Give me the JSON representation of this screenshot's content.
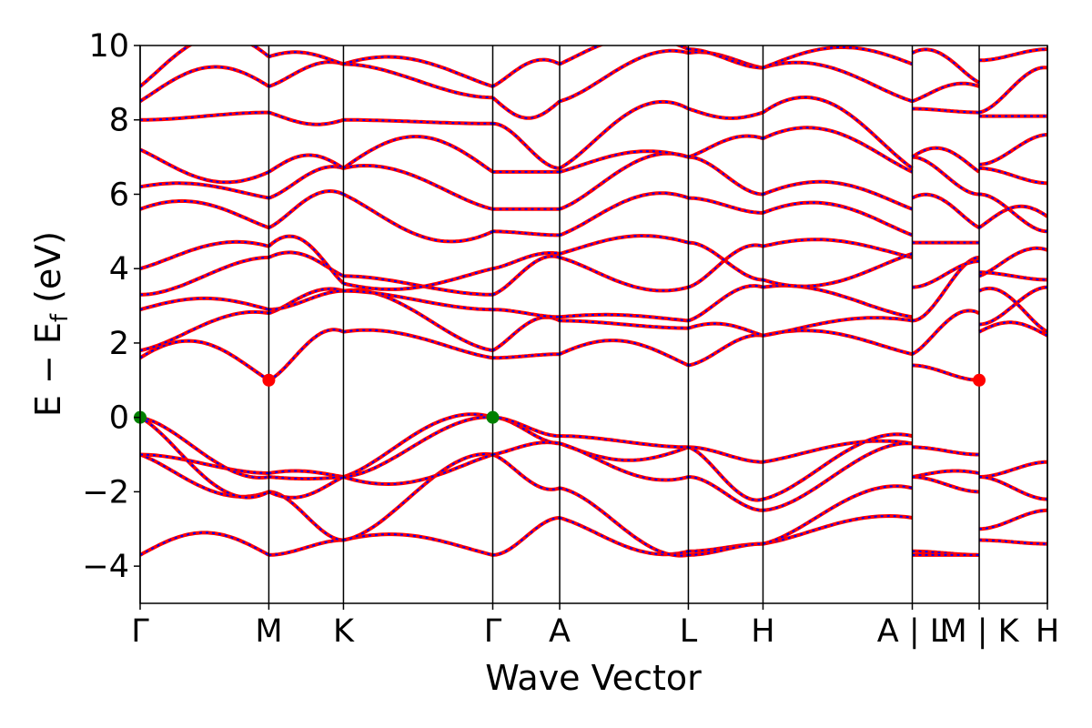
{
  "chart_data": {
    "type": "line",
    "xlabel": "Wave Vector",
    "ylabel": "E − E",
    "ylabel_sub": "f",
    "ylabel_unit": " (eV)",
    "ylim": [
      -5,
      10
    ],
    "yticks": [
      -4,
      -2,
      0,
      2,
      4,
      6,
      8,
      10
    ],
    "ytick_labels": [
      "−4",
      "−2",
      "0",
      "2",
      "4",
      "6",
      "8",
      "10"
    ],
    "xlim": [
      0,
      7.05
    ],
    "high_symmetry_points": [
      {
        "x": 0.0,
        "label": "Γ"
      },
      {
        "x": 1.0,
        "label": "M"
      },
      {
        "x": 1.58,
        "label": "K"
      },
      {
        "x": 2.74,
        "label": "Γ"
      },
      {
        "x": 3.26,
        "label": "A"
      },
      {
        "x": 4.26,
        "label": "L"
      },
      {
        "x": 4.84,
        "label": "H"
      },
      {
        "x": 6.0,
        "label": "A | L"
      },
      {
        "x": 6.52,
        "label": "M | K"
      },
      {
        "x": 7.05,
        "label": "H"
      }
    ],
    "line_colors": {
      "band_a": "#ff0000",
      "band_b": "#0000ff"
    },
    "marker_colors": {
      "vbm": "#008000",
      "cbm": "#ff0000"
    },
    "vbm_points": [
      {
        "x": 0.0,
        "y": 0.0
      },
      {
        "x": 2.74,
        "y": 0.0
      }
    ],
    "cbm_points": [
      {
        "x": 1.0,
        "y": 1.0
      },
      {
        "x": 6.52,
        "y": 1.0
      }
    ],
    "segments": [
      {
        "x0": 0.0,
        "x1": 1.0,
        "bands": [
          {
            "y0": -3.7,
            "y1": -3.7,
            "bump": 0.6
          },
          {
            "y0": -1.0,
            "y1": -2.0,
            "bump": -0.4
          },
          {
            "y0": -1.0,
            "y1": -1.5,
            "bump": 0.0
          },
          {
            "y0": 0.0,
            "y1": -1.6,
            "bump": -0.2
          },
          {
            "y0": 0.0,
            "y1": -2.0,
            "bump": -0.6
          },
          {
            "y0": 1.6,
            "y1": 1.0,
            "bump": 0.7
          },
          {
            "y0": 1.8,
            "y1": 2.8,
            "bump": 0.2
          },
          {
            "y0": 2.9,
            "y1": 2.9,
            "bump": 0.3
          },
          {
            "y0": 3.3,
            "y1": 4.3,
            "bump": 0.0
          },
          {
            "y0": 4.0,
            "y1": 4.6,
            "bump": 0.3
          },
          {
            "y0": 5.6,
            "y1": 5.1,
            "bump": 0.4
          },
          {
            "y0": 6.2,
            "y1": 5.9,
            "bump": 0.2
          },
          {
            "y0": 7.2,
            "y1": 6.6,
            "bump": -0.5
          },
          {
            "y0": 8.0,
            "y1": 8.2,
            "bump": 0.0
          },
          {
            "y0": 8.5,
            "y1": 8.9,
            "bump": 0.7
          },
          {
            "y0": 8.9,
            "y1": 9.7,
            "bump": 0.9
          }
        ]
      },
      {
        "x0": 1.0,
        "x1": 1.58,
        "bands": [
          {
            "y0": -3.7,
            "y1": -3.3,
            "bump": 0.0
          },
          {
            "y0": -2.0,
            "y1": -3.3,
            "bump": 0.0
          },
          {
            "y0": -1.5,
            "y1": -1.6,
            "bump": 0.1
          },
          {
            "y0": -1.6,
            "y1": -1.6,
            "bump": -0.05
          },
          {
            "y0": -2.0,
            "y1": -1.6,
            "bump": -0.3
          },
          {
            "y0": 1.0,
            "y1": 2.3,
            "bump": 0.3
          },
          {
            "y0": 2.8,
            "y1": 3.4,
            "bump": 0.2
          },
          {
            "y0": 2.9,
            "y1": 3.4,
            "bump": 0.0
          },
          {
            "y0": 4.3,
            "y1": 3.8,
            "bump": 0.3
          },
          {
            "y0": 4.6,
            "y1": 3.6,
            "bump": 0.6
          },
          {
            "y0": 5.1,
            "y1": 6.0,
            "bump": 0.3
          },
          {
            "y0": 5.9,
            "y1": 6.7,
            "bump": 0.2
          },
          {
            "y0": 6.6,
            "y1": 6.7,
            "bump": 0.4
          },
          {
            "y0": 8.2,
            "y1": 8.0,
            "bump": -0.2
          },
          {
            "y0": 8.9,
            "y1": 9.5,
            "bump": 0.2
          },
          {
            "y0": 9.7,
            "y1": 9.5,
            "bump": 0.2
          }
        ]
      },
      {
        "x0": 1.58,
        "x1": 2.74,
        "bands": [
          {
            "y0": -3.3,
            "y1": -3.7,
            "bump": 0.3
          },
          {
            "y0": -3.3,
            "y1": -1.0,
            "bump": 0.2
          },
          {
            "y0": -1.6,
            "y1": 0.0,
            "bump": 0.4
          },
          {
            "y0": -1.6,
            "y1": 0.0,
            "bump": 0.1
          },
          {
            "y0": -1.6,
            "y1": -1.0,
            "bump": -0.4
          },
          {
            "y0": 2.3,
            "y1": 1.6,
            "bump": 0.2
          },
          {
            "y0": 3.4,
            "y1": 1.8,
            "bump": 0.2
          },
          {
            "y0": 3.4,
            "y1": 2.9,
            "bump": 0.0
          },
          {
            "y0": 3.8,
            "y1": 3.3,
            "bump": 0.0
          },
          {
            "y0": 3.6,
            "y1": 4.0,
            "bump": -0.3
          },
          {
            "y0": 6.0,
            "y1": 5.0,
            "bump": -0.6
          },
          {
            "y0": 6.7,
            "y1": 5.6,
            "bump": 0.3
          },
          {
            "y0": 6.7,
            "y1": 6.6,
            "bump": 0.9
          },
          {
            "y0": 8.0,
            "y1": 7.9,
            "bump": 0.0
          },
          {
            "y0": 9.5,
            "y1": 8.6,
            "bump": 0.0
          },
          {
            "y0": 9.5,
            "y1": 8.9,
            "bump": 0.4
          }
        ]
      },
      {
        "x0": 2.74,
        "x1": 3.26,
        "bands": [
          {
            "y0": -3.7,
            "y1": -2.7,
            "bump": 0.0
          },
          {
            "y0": -1.0,
            "y1": -1.9,
            "bump": -0.2
          },
          {
            "y0": 0.0,
            "y1": -0.7,
            "bump": 0.0
          },
          {
            "y0": 0.0,
            "y1": -0.5,
            "bump": 0.0
          },
          {
            "y0": -1.0,
            "y1": -0.7,
            "bump": 0.1
          },
          {
            "y0": 1.6,
            "y1": 1.7,
            "bump": 0.0
          },
          {
            "y0": 1.8,
            "y1": 2.6,
            "bump": 0.3
          },
          {
            "y0": 2.9,
            "y1": 2.7,
            "bump": 0.0
          },
          {
            "y0": 3.3,
            "y1": 4.3,
            "bump": 0.2
          },
          {
            "y0": 4.0,
            "y1": 4.4,
            "bump": 0.1
          },
          {
            "y0": 5.0,
            "y1": 4.9,
            "bump": 0.0
          },
          {
            "y0": 5.6,
            "y1": 5.6,
            "bump": 0.0
          },
          {
            "y0": 6.6,
            "y1": 6.6,
            "bump": 0.0
          },
          {
            "y0": 7.9,
            "y1": 6.7,
            "bump": 0.0
          },
          {
            "y0": 8.6,
            "y1": 8.5,
            "bump": -0.5
          },
          {
            "y0": 8.9,
            "y1": 9.5,
            "bump": 0.3
          }
        ]
      },
      {
        "x0": 3.26,
        "x1": 4.26,
        "bands": [
          {
            "y0": -2.7,
            "y1": -3.6,
            "bump": -0.3
          },
          {
            "y0": -1.9,
            "y1": -3.7,
            "bump": -0.2
          },
          {
            "y0": -0.7,
            "y1": -0.8,
            "bump": -0.4
          },
          {
            "y0": -0.5,
            "y1": -0.8,
            "bump": 0.0
          },
          {
            "y0": -0.7,
            "y1": -1.6,
            "bump": -0.3
          },
          {
            "y0": 1.7,
            "y1": 1.4,
            "bump": 0.5
          },
          {
            "y0": 2.6,
            "y1": 2.4,
            "bump": 0.0
          },
          {
            "y0": 2.7,
            "y1": 2.6,
            "bump": 0.1
          },
          {
            "y0": 4.3,
            "y1": 3.5,
            "bump": -0.3
          },
          {
            "y0": 4.4,
            "y1": 4.7,
            "bump": 0.3
          },
          {
            "y0": 4.9,
            "y1": 5.9,
            "bump": 0.4
          },
          {
            "y0": 5.6,
            "y1": 7.0,
            "bump": 0.4
          },
          {
            "y0": 6.6,
            "y1": 7.0,
            "bump": 0.3
          },
          {
            "y0": 6.7,
            "y1": 8.3,
            "bump": 0.6
          },
          {
            "y0": 8.5,
            "y1": 9.8,
            "bump": 0.3
          },
          {
            "y0": 9.5,
            "y1": 9.9,
            "bump": 0.5
          }
        ]
      },
      {
        "x0": 4.26,
        "x1": 4.84,
        "bands": [
          {
            "y0": -3.6,
            "y1": -3.4,
            "bump": 0.0
          },
          {
            "y0": -3.7,
            "y1": -3.4,
            "bump": 0.0
          },
          {
            "y0": -0.8,
            "y1": -1.2,
            "bump": 0.0
          },
          {
            "y0": -0.8,
            "y1": -2.2,
            "bump": -0.2
          },
          {
            "y0": -1.6,
            "y1": -2.5,
            "bump": 0.0
          },
          {
            "y0": 1.4,
            "y1": 2.2,
            "bump": 0.1
          },
          {
            "y0": 2.4,
            "y1": 2.2,
            "bump": 0.2
          },
          {
            "y0": 2.6,
            "y1": 3.5,
            "bump": 0.2
          },
          {
            "y0": 3.5,
            "y1": 4.6,
            "bump": 0.2
          },
          {
            "y0": 4.7,
            "y1": 3.7,
            "bump": 0.0
          },
          {
            "y0": 5.9,
            "y1": 5.5,
            "bump": 0.0
          },
          {
            "y0": 7.0,
            "y1": 6.0,
            "bump": 0.0
          },
          {
            "y0": 7.0,
            "y1": 7.5,
            "bump": 0.2
          },
          {
            "y0": 8.3,
            "y1": 8.2,
            "bump": -0.2
          },
          {
            "y0": 9.8,
            "y1": 9.4,
            "bump": 0.1
          },
          {
            "y0": 9.9,
            "y1": 9.4,
            "bump": 0.0
          }
        ]
      },
      {
        "x0": 4.84,
        "x1": 6.0,
        "bands": [
          {
            "y0": -3.4,
            "y1": -2.7,
            "bump": 0.2
          },
          {
            "y0": -3.4,
            "y1": -1.9,
            "bump": 0.3
          },
          {
            "y0": -1.2,
            "y1": -0.7,
            "bump": 0.2
          },
          {
            "y0": -2.2,
            "y1": -0.5,
            "bump": 0.3
          },
          {
            "y0": -2.5,
            "y1": -0.7,
            "bump": 0.1
          },
          {
            "y0": 2.2,
            "y1": 1.7,
            "bump": 0.3
          },
          {
            "y0": 2.2,
            "y1": 2.6,
            "bump": 0.2
          },
          {
            "y0": 3.5,
            "y1": 2.7,
            "bump": 0.2
          },
          {
            "y0": 4.6,
            "y1": 4.3,
            "bump": 0.3
          },
          {
            "y0": 3.7,
            "y1": 4.4,
            "bump": -0.4
          },
          {
            "y0": 5.5,
            "y1": 4.9,
            "bump": 0.5
          },
          {
            "y0": 6.0,
            "y1": 5.6,
            "bump": 0.5
          },
          {
            "y0": 7.5,
            "y1": 6.6,
            "bump": 0.6
          },
          {
            "y0": 8.2,
            "y1": 6.7,
            "bump": 0.9
          },
          {
            "y0": 9.4,
            "y1": 8.5,
            "bump": 0.4
          },
          {
            "y0": 9.4,
            "y1": 9.5,
            "bump": 0.5
          }
        ]
      },
      {
        "x0": 6.0,
        "x1": 6.52,
        "bands": [
          {
            "y0": -3.6,
            "y1": -3.7,
            "bump": 0.0
          },
          {
            "y0": -3.7,
            "y1": -3.7,
            "bump": 0.0
          },
          {
            "y0": -0.8,
            "y1": -1.0,
            "bump": 0.0
          },
          {
            "y0": -1.6,
            "y1": -1.5,
            "bump": 0.1
          },
          {
            "y0": -1.6,
            "y1": -2.0,
            "bump": 0.0
          },
          {
            "y0": 1.4,
            "y1": 1.0,
            "bump": 0.0
          },
          {
            "y0": 1.7,
            "y1": 2.8,
            "bump": 0.3
          },
          {
            "y0": 2.6,
            "y1": 4.3,
            "bump": 0.0
          },
          {
            "y0": 3.5,
            "y1": 4.2,
            "bump": 0.0
          },
          {
            "y0": 4.7,
            "y1": 4.7,
            "bump": 0.0
          },
          {
            "y0": 5.9,
            "y1": 5.1,
            "bump": 0.3
          },
          {
            "y0": 7.0,
            "y1": 6.0,
            "bump": 0.0
          },
          {
            "y0": 7.0,
            "y1": 6.6,
            "bump": 0.4
          },
          {
            "y0": 8.3,
            "y1": 8.2,
            "bump": 0.0
          },
          {
            "y0": 8.5,
            "y1": 8.9,
            "bump": 0.2
          },
          {
            "y0": 9.8,
            "y1": 9.0,
            "bump": 0.3
          }
        ]
      },
      {
        "x0": 6.52,
        "x1": 7.05,
        "bands": [
          {
            "y0": -3.3,
            "y1": -3.4,
            "bump": 0.0
          },
          {
            "y0": -3.0,
            "y1": -2.5,
            "bump": 0.0
          },
          {
            "y0": -1.6,
            "y1": -1.2,
            "bump": 0.0
          },
          {
            "y0": -1.6,
            "y1": -2.2,
            "bump": 0.0
          },
          {
            "y0": 2.3,
            "y1": 2.2,
            "bump": 0.3
          },
          {
            "y0": 2.5,
            "y1": 3.5,
            "bump": 0.0
          },
          {
            "y0": 3.4,
            "y1": 2.3,
            "bump": 0.3
          },
          {
            "y0": 3.8,
            "y1": 4.5,
            "bump": 0.2
          },
          {
            "y0": 3.9,
            "y1": 3.7,
            "bump": 0.0
          },
          {
            "y0": 5.1,
            "y1": 5.4,
            "bump": 0.4
          },
          {
            "y0": 6.0,
            "y1": 5.0,
            "bump": 0.0
          },
          {
            "y0": 6.7,
            "y1": 6.3,
            "bump": 0.0
          },
          {
            "y0": 6.8,
            "y1": 7.6,
            "bump": 0.0
          },
          {
            "y0": 8.1,
            "y1": 8.1,
            "bump": 0.0
          },
          {
            "y0": 8.2,
            "y1": 9.4,
            "bump": 0.1
          },
          {
            "y0": 9.6,
            "y1": 9.9,
            "bump": 0.0
          }
        ]
      }
    ]
  }
}
